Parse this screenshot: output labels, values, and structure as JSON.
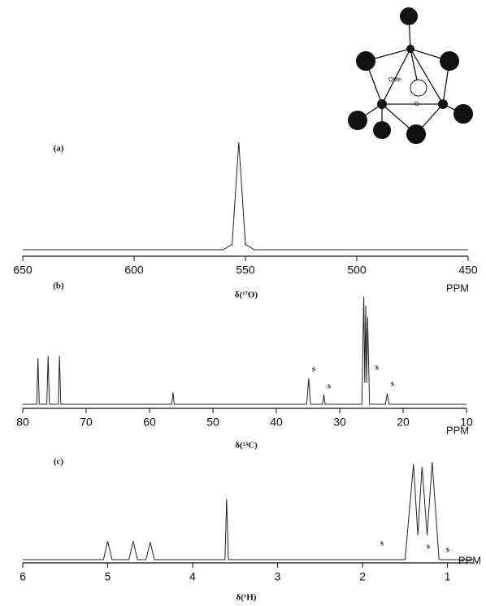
{
  "chart_data": [
    {
      "type": "line",
      "label": "(a)",
      "x_label": "δ(¹⁷O)",
      "x_units": "PPM",
      "xlim": [
        650,
        450
      ],
      "xticks": [
        650,
        600,
        550,
        500,
        450
      ],
      "ylim": [
        0,
        100
      ],
      "color": "#222",
      "x": [
        650,
        560,
        556,
        553,
        550,
        546,
        450
      ],
      "values": [
        0,
        0,
        5,
        100,
        5,
        0,
        0
      ],
      "molecule_labels": [
        "OMe",
        "O"
      ]
    },
    {
      "type": "line",
      "label": "(b)",
      "x_label": "δ(¹³C)",
      "x_units": "PPM",
      "xlim": [
        80,
        10
      ],
      "xticks": [
        80,
        70,
        60,
        50,
        40,
        30,
        20,
        10
      ],
      "ylim": [
        0,
        100
      ],
      "color": "#222",
      "x": [
        80,
        77.8,
        77.6,
        77.4,
        76.2,
        76,
        75.8,
        74.4,
        74.2,
        74,
        56.5,
        56.3,
        56.1,
        35.2,
        34.9,
        34.6,
        32.7,
        32.5,
        32.3,
        26.5,
        26.2,
        26.05,
        25.9,
        25.75,
        25.6,
        25.3,
        22.8,
        22.5,
        22.2,
        10
      ],
      "values": [
        0,
        0,
        43,
        0,
        0,
        45,
        0,
        0,
        45,
        0,
        0,
        11,
        0,
        0,
        24,
        0,
        0,
        9,
        0,
        0,
        100,
        20,
        92,
        20,
        81,
        0,
        0,
        10,
        0,
        0
      ],
      "annotations": [
        "s",
        "s",
        "s",
        "s"
      ]
    },
    {
      "type": "line",
      "label": "(c)",
      "x_label": "δ(¹H)",
      "x_units": "PPM",
      "xlim": [
        6,
        0.7
      ],
      "xticks": [
        6,
        5,
        4,
        3,
        2,
        1
      ],
      "ylim": [
        0,
        100
      ],
      "color": "#222",
      "x": [
        6,
        5.05,
        5.0,
        4.95,
        4.75,
        4.7,
        4.65,
        4.55,
        4.5,
        4.45,
        3.62,
        3.6,
        3.58,
        1.5,
        1.4,
        1.35,
        1.3,
        1.24,
        1.18,
        1.1,
        0.7
      ],
      "values": [
        0,
        0,
        19,
        0,
        0,
        19,
        0,
        0,
        18,
        0,
        0,
        62,
        0,
        0,
        98,
        25,
        95,
        25,
        100,
        0,
        0
      ],
      "annotations": [
        "s",
        "s",
        "s"
      ]
    }
  ]
}
